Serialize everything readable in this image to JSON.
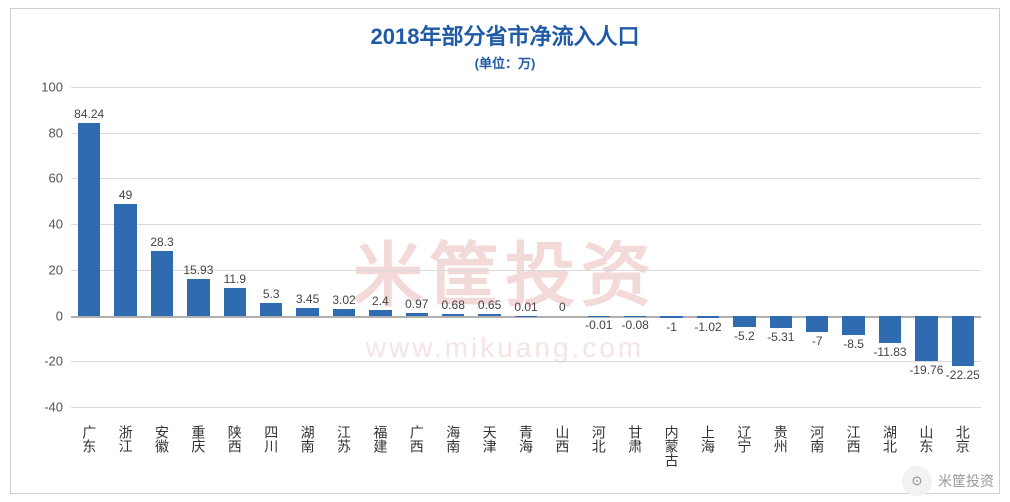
{
  "chart": {
    "type": "bar",
    "title": "2018年部分省市净流入人口",
    "title_fontsize": 22,
    "subtitle": "(单位：万)",
    "subtitle_fontsize": 13,
    "title_color": "#1f5aa6",
    "background_color": "#ffffff",
    "border_color": "#cfcfcf",
    "grid_color": "#d9d9d9",
    "zero_line_color": "#b0b0b0",
    "bar_color": "#2e6bb0",
    "bar_width_ratio": 0.62,
    "label_fontsize": 12,
    "xlabel_fontsize": 14,
    "ytick_fontsize": 13,
    "ylim": [
      -40,
      100
    ],
    "yticks": [
      -40,
      -20,
      0,
      20,
      40,
      60,
      80,
      100
    ],
    "categories": [
      "广东",
      "浙江",
      "安徽",
      "重庆",
      "陕西",
      "四川",
      "湖南",
      "江苏",
      "福建",
      "广西",
      "海南",
      "天津",
      "青海",
      "山西",
      "河北",
      "甘肃",
      "内蒙古",
      "上海",
      "辽宁",
      "贵州",
      "河南",
      "江西",
      "湖北",
      "山东",
      "北京"
    ],
    "values": [
      84.24,
      49,
      28.3,
      15.93,
      11.9,
      5.3,
      3.45,
      3.02,
      2.4,
      0.97,
      0.68,
      0.65,
      0.01,
      0,
      -0.01,
      -0.08,
      -1,
      -1.02,
      -5.2,
      -5.31,
      -7,
      -8.5,
      -11.83,
      -19.76,
      -22.25
    ],
    "value_labels": [
      "84.24",
      "49",
      "28.3",
      "15.93",
      "11.9",
      "5.3",
      "3.45",
      "3.02",
      "2.4",
      "0.97",
      "0.68",
      "0.65",
      "0.01",
      "0",
      "-0.01",
      "-0.08",
      "-1",
      "-1.02",
      "-5.2",
      "-5.31",
      "-7",
      "-8.5",
      "-11.83",
      "-19.76",
      "-22.25"
    ]
  },
  "watermark": {
    "text": "米筐投资",
    "url": "www.mikuang.com",
    "color": "#f4d9d9"
  },
  "footer": {
    "icon_glyph": "⊙",
    "label": "米筐投资"
  }
}
